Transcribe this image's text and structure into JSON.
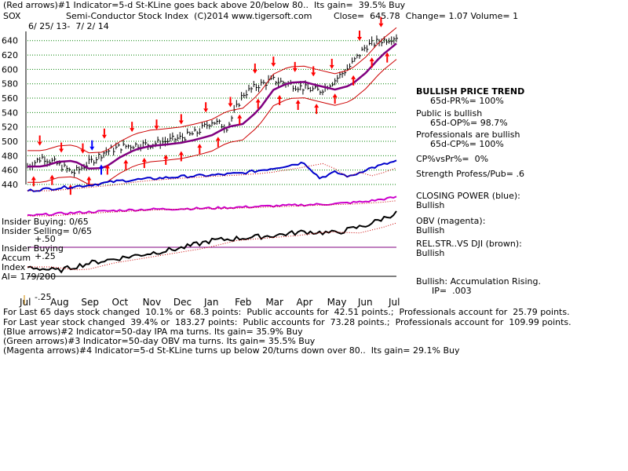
{
  "header": {
    "line1": "(Red arrows)#1 Indicator=5-d St-KLine goes back above 20/below 80..  Its gain=  39.5% Buy",
    "symbol": "SOX",
    "title": "Semi-Conductor Stock Index  (C)2014 www.tigersoft.com",
    "quote": "Close=  645.78  Change= 1.07 Volume= 1",
    "date_range": "6/ 25/ 13-  7/ 2/ 14"
  },
  "right_panel": {
    "trend": "BULLISH PRICE TREND",
    "pr": "65d-PR%= 100%",
    "public": "Public is bullish",
    "op": "65d-OP%= 98.7%",
    "pros": "Professionals are bullish",
    "cp": "65d-CP%= 100%",
    "cpvspr": "CP%vsPr%=  0%",
    "strength": "Strength Profess/Pub= .6",
    "closing_power_label": "CLOSING POWER (blue):",
    "closing_power_value": "Bullish",
    "obv_label": "OBV (magenta):",
    "obv_value": "Bullish",
    "relstr_label": "REL.STR..VS DJI (brown):",
    "relstr_value": "Bullish",
    "accum_label": "Bullish: Accumulation Rising.",
    "ip": "IP=  .003"
  },
  "left_panel": {
    "insider_buying": "Insider Buying: 0/65",
    "insider_selling": "Insider Selling= 0/65",
    "plus50": "+.50",
    "insider_buying2": "Insider Buying",
    "accum": "Accum",
    "plus25": "+.25",
    "index": "Index",
    "ai": "AI= 179/200",
    "minus25": "-.25"
  },
  "footer": {
    "line1": "For Last 65 days stock changed  10.1% or  68.3 points:  Public accounts for  42.51 points.;  Professionals account for  25.79 points.",
    "line2": "For Last year stock changed  39.4% or  183.27 points:  Public accounts for  73.28 points.;  Professionals account for  109.99 points.",
    "line3": "(Blue arrows)#2 Indicator=50-day IPA ma turns. Its gain= 35.9% Buy",
    "line4": "(Green arrows)#3 Indicator=50-day OBV ma turns. Its gain= 35.5% Buy",
    "line5": "(Magenta arrows)#4 Indicator=5-d St-KLine turns up below 20/turns down over 80..  Its gain= 29.1% Buy"
  },
  "colors": {
    "price": "#000000",
    "band": "#cc0000",
    "ma_purple": "#800080",
    "closing_power": "#0000cc",
    "obv": "#cc00cc",
    "accum": "#000000",
    "arrow_red": "#ff0000",
    "arrow_blue": "#0000ff",
    "grid": "#008000"
  },
  "chart_data": {
    "type": "line",
    "title": "Semi-Conductor Stock Index",
    "x_months": [
      "Jul",
      "Aug",
      "Sep",
      "Oct",
      "Nov",
      "Dec",
      "Jan",
      "Feb",
      "Mar",
      "Apr",
      "May",
      "Jun",
      "Jul"
    ],
    "y_ticks": [
      440,
      460,
      480,
      500,
      520,
      540,
      560,
      580,
      600,
      620,
      640
    ],
    "ylim": [
      440,
      655
    ],
    "grid": true,
    "series": [
      {
        "name": "SOX",
        "x": [
          0,
          0.5,
          1,
          1.5,
          2,
          2.5,
          3,
          3.5,
          4,
          4.5,
          5,
          5.5,
          6,
          6.5,
          7,
          7.5,
          8,
          8.5,
          9,
          9.5,
          10,
          10.5,
          11,
          11.5,
          12
        ],
        "values": [
          465,
          478,
          468,
          456,
          470,
          485,
          492,
          495,
          496,
          500,
          505,
          512,
          528,
          520,
          565,
          578,
          585,
          580,
          574,
          570,
          585,
          605,
          632,
          640,
          645.78
        ]
      },
      {
        "name": "CLOSING POWER (blue)",
        "x": [
          0,
          1,
          2,
          3,
          4,
          5,
          6,
          7,
          8,
          9,
          9.5,
          10,
          10.5,
          11,
          11.5,
          12
        ],
        "values": [
          30,
          34,
          38,
          44,
          47,
          50,
          52,
          55,
          62,
          70,
          48,
          56,
          50,
          60,
          66,
          72
        ]
      },
      {
        "name": "OBV (magenta)",
        "x": [
          0,
          1,
          2,
          3,
          4,
          5,
          6,
          7,
          8,
          9,
          10,
          11,
          12
        ],
        "values": [
          10,
          14,
          17,
          20,
          22,
          23,
          24,
          26,
          28,
          30,
          32,
          36,
          44
        ]
      },
      {
        "name": "REL.STR..VS DJI (brown)",
        "x": [
          0,
          1,
          2,
          3,
          4,
          5,
          6,
          7,
          8,
          9,
          10,
          11,
          12
        ],
        "values": [
          5,
          2,
          8,
          12,
          16,
          20,
          26,
          28,
          30,
          33,
          32,
          38,
          48
        ]
      }
    ]
  }
}
